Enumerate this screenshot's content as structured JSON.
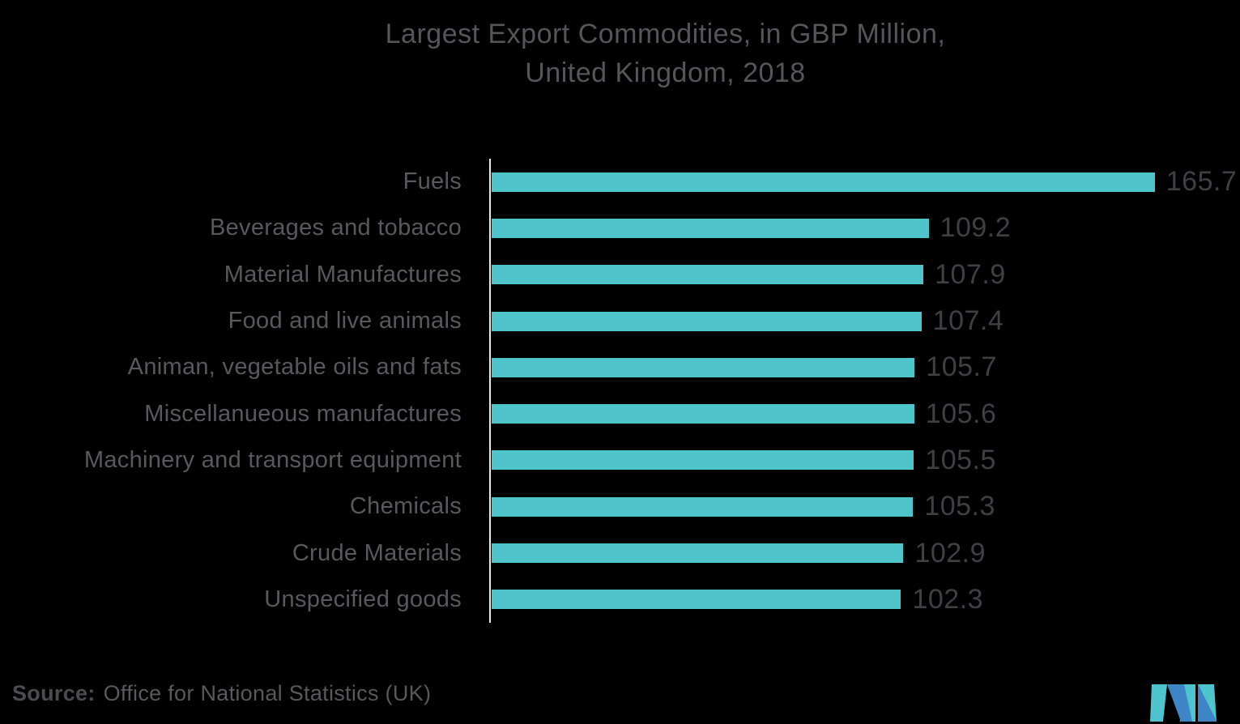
{
  "title": {
    "line1": "Largest Export Commodities, in GBP Million,",
    "line2": "United Kingdom, 2018"
  },
  "source": {
    "label": "Source:",
    "text": "Office for National Statistics (UK)"
  },
  "colors": {
    "background": "#000000",
    "bar": "#50C4CB",
    "axis_line": "#E9E9EB",
    "title_text": "#55565A",
    "category_text": "#58595B",
    "value_text": "#3F4043",
    "source_text": "#59595B",
    "logo_teal": "#4EC5CE",
    "logo_blue": "#3D85C6"
  },
  "chart_data": {
    "type": "bar",
    "orientation": "horizontal",
    "title": "Largest Export Commodities, in GBP Million, United Kingdom, 2018",
    "categories": [
      "Fuels",
      "Beverages and tobacco",
      "Material Manufactures",
      "Food and live animals",
      "Animan, vegetable oils and fats",
      "Miscellanueous manufactures",
      "Machinery and transport equipment",
      "Chemicals",
      "Crude Materials",
      "Unspecified goods"
    ],
    "values": [
      165.7,
      109.2,
      107.9,
      107.4,
      105.7,
      105.6,
      105.5,
      105.3,
      102.9,
      102.3
    ],
    "xlabel": "",
    "ylabel": "",
    "xlim": [
      0,
      187
    ],
    "value_labels": true,
    "grid": false,
    "legend": false,
    "legend_position": "none",
    "source": "Office for National Statistics (UK)"
  }
}
